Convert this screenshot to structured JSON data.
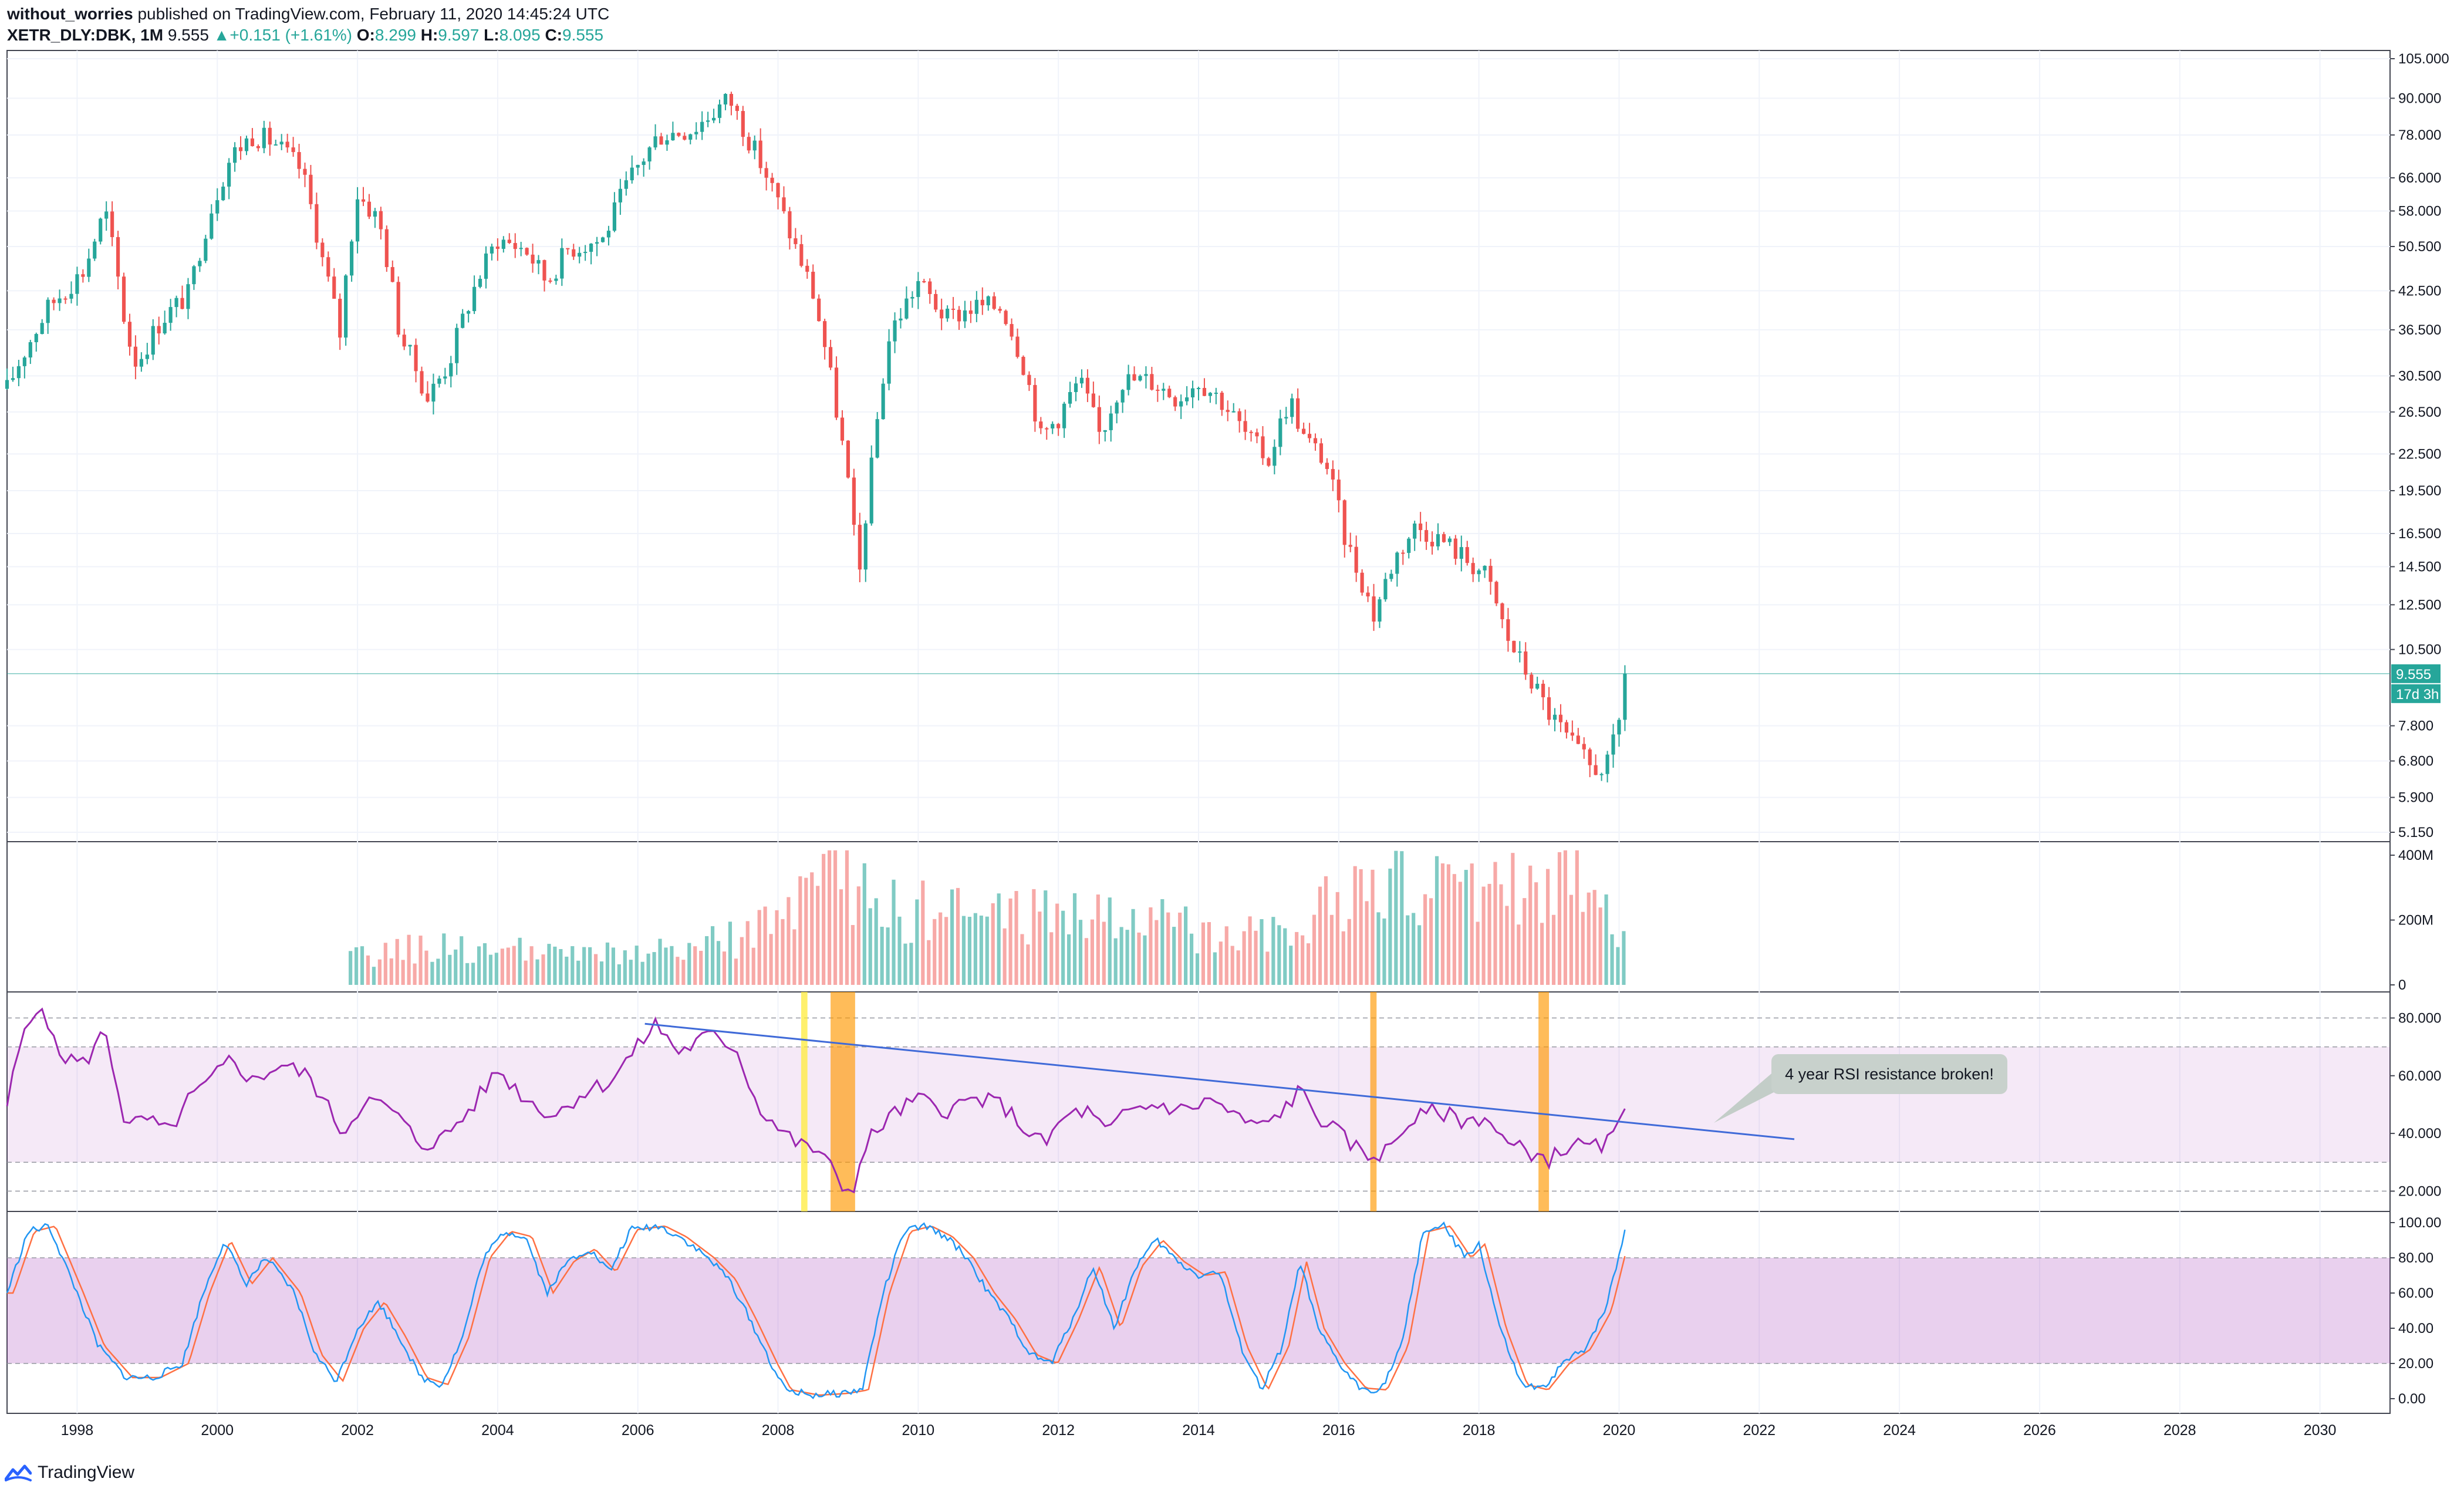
{
  "header": {
    "author": "without_worries",
    "published_text": "published on TradingView.com, February 11, 2020 14:45:24 UTC",
    "symbol": "XETR_DLY:DBK, 1M",
    "last": "9.555",
    "change": "+0.151 (+1.61%)",
    "o_label": "O:",
    "o_value": "8.299",
    "h_label": "H:",
    "h_value": "9.597",
    "l_label": "L:",
    "l_value": "8.095",
    "c_label": "C:",
    "c_value": "9.555"
  },
  "footer": {
    "brand": "TradingView"
  },
  "colors": {
    "up": "#26a69a",
    "down": "#ef5350",
    "rsi": "#9c27b0",
    "trend": "#3f6ad8",
    "stoch_k": "#2196f3",
    "stoch_d": "#ff7043",
    "yellow": "#ffeb3b",
    "orange": "#ff9800"
  },
  "chart_data": [
    {
      "type": "candlestick",
      "panel": "price",
      "y_scale": "log",
      "ylim": [
        5.15,
        105
      ],
      "y_ticks": [
        "105.000",
        "90.000",
        "78.000",
        "66.000",
        "58.000",
        "50.500",
        "42.500",
        "36.500",
        "30.500",
        "26.500",
        "22.500",
        "19.500",
        "16.500",
        "14.500",
        "12.500",
        "10.500",
        "9.555",
        "7.800",
        "6.800",
        "5.900",
        "5.150"
      ],
      "price_label": "9.555",
      "countdown_label": "17d 3h",
      "x_ticks": [
        "1998",
        "2000",
        "2002",
        "2004",
        "2006",
        "2008",
        "2010",
        "2012",
        "2014",
        "2016",
        "2018",
        "2020",
        "2022",
        "2024",
        "2026",
        "2028",
        "2030"
      ],
      "xlim": [
        1997.0,
        2031.0
      ],
      "anchors": [
        [
          1997.0,
          29
        ],
        [
          1997.6,
          40
        ],
        [
          1998.1,
          46
        ],
        [
          1998.4,
          58
        ],
        [
          1998.7,
          36
        ],
        [
          1998.85,
          32
        ],
        [
          1999.2,
          38
        ],
        [
          1999.6,
          42
        ],
        [
          1999.9,
          58
        ],
        [
          2000.2,
          72
        ],
        [
          2000.5,
          78
        ],
        [
          2000.8,
          76
        ],
        [
          2001.2,
          68
        ],
        [
          2001.5,
          48
        ],
        [
          2001.75,
          36
        ],
        [
          2002.0,
          62
        ],
        [
          2002.3,
          56
        ],
        [
          2002.6,
          36
        ],
        [
          2003.0,
          28
        ],
        [
          2003.3,
          32
        ],
        [
          2003.7,
          44
        ],
        [
          2004.0,
          52
        ],
        [
          2004.4,
          50
        ],
        [
          2004.7,
          44
        ],
        [
          2005.0,
          50
        ],
        [
          2005.5,
          52
        ],
        [
          2005.9,
          66
        ],
        [
          2006.3,
          78
        ],
        [
          2006.8,
          80
        ],
        [
          2007.3,
          90
        ],
        [
          2007.6,
          76
        ],
        [
          2007.9,
          64
        ],
        [
          2008.2,
          52
        ],
        [
          2008.5,
          42
        ],
        [
          2008.8,
          28
        ],
        [
          2009.0,
          20
        ],
        [
          2009.15,
          13.5
        ],
        [
          2009.35,
          22
        ],
        [
          2009.6,
          36
        ],
        [
          2010.0,
          44
        ],
        [
          2010.4,
          38
        ],
        [
          2010.8,
          40
        ],
        [
          2011.2,
          40
        ],
        [
          2011.5,
          32
        ],
        [
          2011.75,
          24
        ],
        [
          2012.0,
          26
        ],
        [
          2012.3,
          30
        ],
        [
          2012.6,
          24
        ],
        [
          2012.9,
          30
        ],
        [
          2013.3,
          30
        ],
        [
          2013.7,
          28
        ],
        [
          2014.0,
          30
        ],
        [
          2014.3,
          28
        ],
        [
          2014.7,
          24
        ],
        [
          2015.0,
          22
        ],
        [
          2015.3,
          28
        ],
        [
          2015.5,
          24
        ],
        [
          2015.8,
          22
        ],
        [
          2016.1,
          16
        ],
        [
          2016.5,
          12
        ],
        [
          2016.8,
          15
        ],
        [
          2017.1,
          17
        ],
        [
          2017.5,
          16
        ],
        [
          2017.8,
          15
        ],
        [
          2018.1,
          14
        ],
        [
          2018.4,
          11
        ],
        [
          2018.7,
          9.5
        ],
        [
          2019.0,
          8.2
        ],
        [
          2019.3,
          7.3
        ],
        [
          2019.6,
          6.6
        ],
        [
          2019.85,
          6.7
        ],
        [
          2020.05,
          8.3
        ],
        [
          2020.12,
          9.555
        ]
      ]
    },
    {
      "type": "bar",
      "panel": "volume",
      "ylim": [
        0,
        420
      ],
      "y_ticks": [
        "400M",
        "200M",
        "0"
      ],
      "x_start": 2001.9,
      "x_end": 2020.12,
      "profile": [
        [
          2001.9,
          80
        ],
        [
          2003.0,
          120
        ],
        [
          2005.0,
          90
        ],
        [
          2006.5,
          100
        ],
        [
          2007.5,
          150
        ],
        [
          2008.5,
          260
        ],
        [
          2009.0,
          340
        ],
        [
          2009.5,
          230
        ],
        [
          2011.0,
          210
        ],
        [
          2012.0,
          230
        ],
        [
          2014.0,
          170
        ],
        [
          2015.5,
          190
        ],
        [
          2016.3,
          300
        ],
        [
          2017.0,
          290
        ],
        [
          2018.0,
          310
        ],
        [
          2019.5,
          340
        ],
        [
          2020.12,
          150
        ]
      ]
    },
    {
      "type": "line",
      "panel": "rsi",
      "ylim": [
        15,
        87
      ],
      "y_ticks": [
        "80.000",
        "60.000",
        "40.000",
        "20.000"
      ],
      "band": [
        30,
        70
      ],
      "dashed_levels": [
        80,
        70,
        30,
        20
      ],
      "anchors": [
        [
          1997.0,
          50
        ],
        [
          1997.2,
          72
        ],
        [
          1997.5,
          86
        ],
        [
          1997.7,
          68
        ],
        [
          1998.1,
          64
        ],
        [
          1998.4,
          76
        ],
        [
          1998.7,
          42
        ],
        [
          1999.0,
          45
        ],
        [
          1999.3,
          40
        ],
        [
          1999.6,
          52
        ],
        [
          1999.9,
          58
        ],
        [
          2000.2,
          66
        ],
        [
          2000.5,
          58
        ],
        [
          2000.9,
          64
        ],
        [
          2001.3,
          60
        ],
        [
          2001.6,
          48
        ],
        [
          2001.8,
          40
        ],
        [
          2002.1,
          52
        ],
        [
          2002.5,
          48
        ],
        [
          2002.9,
          36
        ],
        [
          2003.2,
          38
        ],
        [
          2003.6,
          48
        ],
        [
          2004.0,
          62
        ],
        [
          2004.4,
          52
        ],
        [
          2004.8,
          46
        ],
        [
          2005.2,
          54
        ],
        [
          2005.6,
          58
        ],
        [
          2006.0,
          70
        ],
        [
          2006.25,
          78
        ],
        [
          2006.6,
          68
        ],
        [
          2007.0,
          74
        ],
        [
          2007.4,
          70
        ],
        [
          2007.7,
          50
        ],
        [
          2008.0,
          42
        ],
        [
          2008.3,
          36
        ],
        [
          2008.6,
          34
        ],
        [
          2008.9,
          22
        ],
        [
          2009.05,
          20
        ],
        [
          2009.3,
          38
        ],
        [
          2009.6,
          46
        ],
        [
          2010.0,
          52
        ],
        [
          2010.4,
          48
        ],
        [
          2010.8,
          52
        ],
        [
          2011.2,
          50
        ],
        [
          2011.5,
          42
        ],
        [
          2011.8,
          36
        ],
        [
          2012.1,
          46
        ],
        [
          2012.4,
          48
        ],
        [
          2012.7,
          40
        ],
        [
          2013.0,
          48
        ],
        [
          2013.4,
          50
        ],
        [
          2013.8,
          48
        ],
        [
          2014.2,
          52
        ],
        [
          2014.5,
          46
        ],
        [
          2014.9,
          42
        ],
        [
          2015.2,
          48
        ],
        [
          2015.45,
          55
        ],
        [
          2015.7,
          46
        ],
        [
          2016.0,
          40
        ],
        [
          2016.4,
          32
        ],
        [
          2016.7,
          34
        ],
        [
          2017.0,
          44
        ],
        [
          2017.4,
          48
        ],
        [
          2017.8,
          44
        ],
        [
          2018.1,
          46
        ],
        [
          2018.4,
          36
        ],
        [
          2018.7,
          34
        ],
        [
          2019.0,
          31
        ],
        [
          2019.3,
          36
        ],
        [
          2019.7,
          35
        ],
        [
          2019.95,
          39
        ],
        [
          2020.12,
          51
        ]
      ],
      "trendline": [
        [
          2006.1,
          78
        ],
        [
          2022.5,
          38
        ]
      ],
      "highlights": [
        {
          "color": "yellow",
          "x0": 2008.33,
          "x1": 2008.42
        },
        {
          "color": "orange",
          "x0": 2008.75,
          "x1": 2009.1
        },
        {
          "color": "orange",
          "x0": 2016.45,
          "x1": 2016.54
        },
        {
          "color": "orange",
          "x0": 2018.85,
          "x1": 2019.0
        }
      ],
      "annotation": "4 year RSI resistance broken!"
    },
    {
      "type": "line",
      "panel": "stoch",
      "ylim": [
        -5,
        103
      ],
      "y_ticks": [
        "100.00",
        "80.00",
        "60.00",
        "40.00",
        "20.00",
        "0.00"
      ],
      "band": [
        20,
        80
      ],
      "series": [
        {
          "anchors": [
            [
              1997.0,
              60
            ],
            [
              1997.3,
              95
            ],
            [
              1997.6,
              98
            ],
            [
              1998.0,
              60
            ],
            [
              1998.3,
              30
            ],
            [
              1998.7,
              12
            ],
            [
              1999.1,
              12
            ],
            [
              1999.5,
              20
            ],
            [
              1999.8,
              60
            ],
            [
              2000.1,
              90
            ],
            [
              2000.4,
              65
            ],
            [
              2000.7,
              80
            ],
            [
              2001.1,
              60
            ],
            [
              2001.4,
              25
            ],
            [
              2001.7,
              10
            ],
            [
              2002.0,
              40
            ],
            [
              2002.3,
              55
            ],
            [
              2002.6,
              35
            ],
            [
              2002.9,
              12
            ],
            [
              2003.2,
              8
            ],
            [
              2003.5,
              35
            ],
            [
              2003.8,
              80
            ],
            [
              2004.1,
              95
            ],
            [
              2004.4,
              92
            ],
            [
              2004.7,
              60
            ],
            [
              2005.0,
              78
            ],
            [
              2005.3,
              85
            ],
            [
              2005.6,
              72
            ],
            [
              2005.9,
              96
            ],
            [
              2006.3,
              98
            ],
            [
              2006.6,
              92
            ],
            [
              2007.0,
              80
            ],
            [
              2007.3,
              68
            ],
            [
              2007.6,
              45
            ],
            [
              2007.9,
              20
            ],
            [
              2008.1,
              5
            ],
            [
              2008.5,
              2
            ],
            [
              2008.9,
              3
            ],
            [
              2009.2,
              5
            ],
            [
              2009.5,
              60
            ],
            [
              2009.8,
              95
            ],
            [
              2010.1,
              98
            ],
            [
              2010.4,
              92
            ],
            [
              2010.7,
              80
            ],
            [
              2011.0,
              60
            ],
            [
              2011.3,
              45
            ],
            [
              2011.6,
              25
            ],
            [
              2011.9,
              20
            ],
            [
              2012.2,
              45
            ],
            [
              2012.5,
              75
            ],
            [
              2012.8,
              40
            ],
            [
              2013.1,
              75
            ],
            [
              2013.4,
              90
            ],
            [
              2013.7,
              78
            ],
            [
              2014.0,
              70
            ],
            [
              2014.3,
              72
            ],
            [
              2014.6,
              30
            ],
            [
              2014.9,
              5
            ],
            [
              2015.2,
              30
            ],
            [
              2015.45,
              78
            ],
            [
              2015.7,
              40
            ],
            [
              2016.0,
              20
            ],
            [
              2016.3,
              6
            ],
            [
              2016.6,
              5
            ],
            [
              2016.9,
              30
            ],
            [
              2017.2,
              95
            ],
            [
              2017.5,
              98
            ],
            [
              2017.8,
              80
            ],
            [
              2018.0,
              88
            ],
            [
              2018.3,
              40
            ],
            [
              2018.6,
              8
            ],
            [
              2018.9,
              5
            ],
            [
              2019.2,
              20
            ],
            [
              2019.5,
              28
            ],
            [
              2019.8,
              50
            ],
            [
              2020.1,
              98
            ]
          ]
        }
      ]
    }
  ]
}
